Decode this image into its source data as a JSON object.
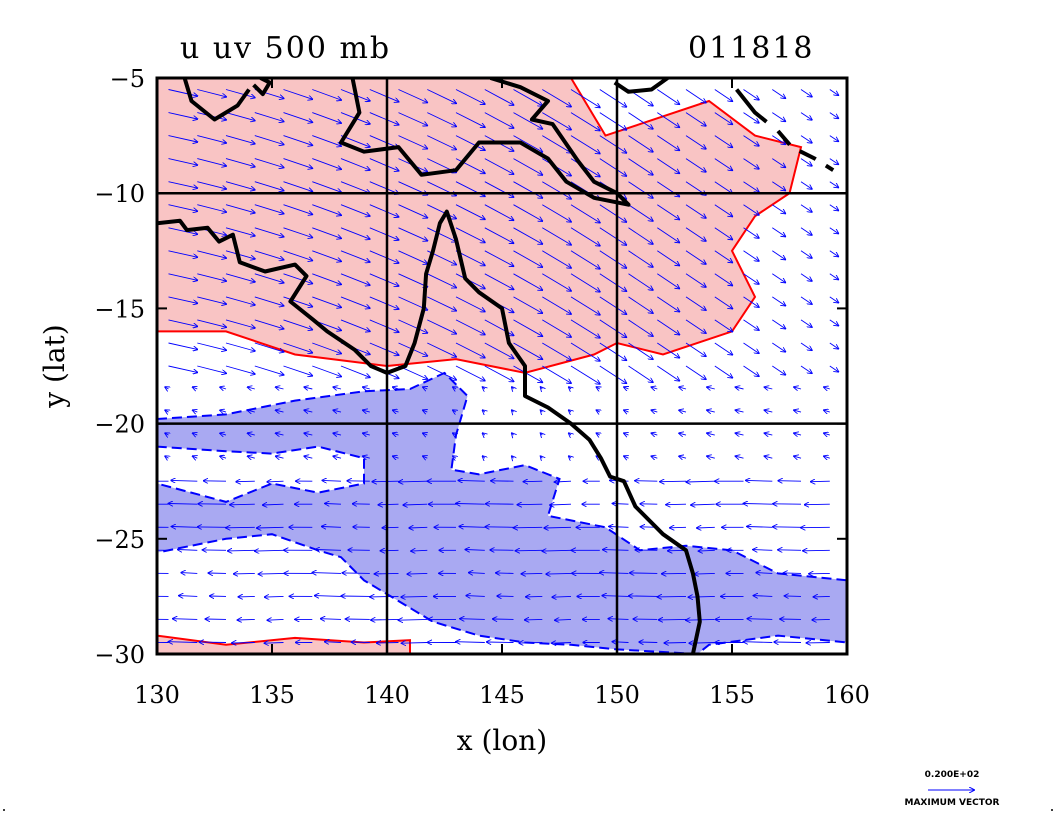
{
  "chart_data": {
    "type": "contour",
    "title": "u  uv 500 mb",
    "subtitle": "011818",
    "xlabel": "x (lon)",
    "ylabel": "y (lat)",
    "xlim": [
      130,
      160
    ],
    "ylim": [
      -30,
      -5
    ],
    "x_ticks": [
      130,
      135,
      140,
      145,
      150,
      155,
      160
    ],
    "x_tick_labels": [
      "130",
      "135",
      "140",
      "145",
      "150",
      "155",
      "160"
    ],
    "y_ticks": [
      -5,
      -10,
      -15,
      -20,
      -25,
      -30
    ],
    "y_tick_labels": [
      "−5",
      "−10",
      "−15",
      "−20",
      "−25",
      "−30"
    ],
    "gridlines": {
      "lon": [
        140,
        150
      ],
      "lat": [
        -10,
        -20
      ]
    },
    "shading": {
      "positive_color": "#f9c4c4",
      "negative_color": "#a9a9f2",
      "positive_contour_color": "#ff0000",
      "negative_contour_color": "#0000ff",
      "vector_color": "#0000ff",
      "coast_color": "#000000"
    },
    "regions": {
      "positive_north": [
        [
          130,
          -5
        ],
        [
          148,
          -5
        ],
        [
          149.5,
          -7.5
        ],
        [
          151,
          -7
        ],
        [
          154,
          -6
        ],
        [
          156,
          -7.5
        ],
        [
          158,
          -8
        ],
        [
          157.5,
          -10
        ],
        [
          156,
          -11
        ],
        [
          155,
          -12.5
        ],
        [
          156,
          -14.5
        ],
        [
          155,
          -16
        ],
        [
          152,
          -17
        ],
        [
          150,
          -16.5
        ],
        [
          149,
          -17
        ],
        [
          146,
          -17.8
        ],
        [
          143,
          -17.2
        ],
        [
          140,
          -17.5
        ],
        [
          136,
          -17
        ],
        [
          133,
          -16
        ],
        [
          130,
          -16
        ]
      ],
      "positive_south": [
        [
          130,
          -29.2
        ],
        [
          133,
          -29.6
        ],
        [
          136,
          -29.3
        ],
        [
          139,
          -29.5
        ],
        [
          141,
          -29.4
        ],
        [
          141,
          -30
        ],
        [
          130,
          -30
        ]
      ],
      "negative_main": [
        [
          130,
          -19.8
        ],
        [
          133,
          -19.6
        ],
        [
          136,
          -19
        ],
        [
          139,
          -18.6
        ],
        [
          141,
          -18.5
        ],
        [
          142.5,
          -17.8
        ],
        [
          143.5,
          -18.8
        ],
        [
          143,
          -20.5
        ],
        [
          142.8,
          -22
        ],
        [
          144,
          -22.2
        ],
        [
          146,
          -21.8
        ],
        [
          147.5,
          -22.4
        ],
        [
          147,
          -24
        ],
        [
          149.5,
          -24.5
        ],
        [
          151,
          -25.5
        ],
        [
          153,
          -25.3
        ],
        [
          155,
          -25.5
        ],
        [
          157,
          -26.5
        ],
        [
          160,
          -26.8
        ],
        [
          160,
          -29.5
        ],
        [
          157,
          -29.2
        ],
        [
          154,
          -29.6
        ],
        [
          153.5,
          -30
        ],
        [
          150,
          -29.8
        ],
        [
          148,
          -29.6
        ],
        [
          146,
          -29.5
        ],
        [
          144,
          -29.2
        ],
        [
          142,
          -28.6
        ],
        [
          139,
          -26.8
        ],
        [
          138,
          -25.8
        ],
        [
          137,
          -25.5
        ],
        [
          135,
          -24.8
        ],
        [
          133,
          -25
        ],
        [
          130,
          -25.6
        ],
        [
          130,
          -22.6
        ],
        [
          133,
          -23.4
        ],
        [
          135,
          -22.6
        ],
        [
          137,
          -23
        ],
        [
          139,
          -22.6
        ],
        [
          139,
          -21.5
        ],
        [
          137,
          -21
        ],
        [
          135,
          -21.3
        ],
        [
          133,
          -21.2
        ],
        [
          130,
          -21
        ]
      ]
    },
    "coastlines": [
      [
        [
          130,
          -11.3
        ],
        [
          131,
          -11.2
        ],
        [
          131.3,
          -11.6
        ],
        [
          132.2,
          -11.5
        ],
        [
          132.7,
          -12.1
        ],
        [
          133.3,
          -11.8
        ],
        [
          133.6,
          -13
        ],
        [
          134.7,
          -13.4
        ],
        [
          136,
          -13.1
        ],
        [
          136.5,
          -13.6
        ],
        [
          135.8,
          -14.7
        ],
        [
          136.8,
          -15.5
        ],
        [
          137.4,
          -16
        ],
        [
          138.6,
          -16.8
        ],
        [
          139.3,
          -17.5
        ],
        [
          140,
          -17.8
        ],
        [
          140.8,
          -17.5
        ],
        [
          141.2,
          -16.5
        ],
        [
          141.6,
          -15
        ],
        [
          141.7,
          -13.5
        ],
        [
          142,
          -12.5
        ],
        [
          142.3,
          -11.3
        ],
        [
          142.6,
          -10.8
        ],
        [
          143,
          -12
        ],
        [
          143.4,
          -13.7
        ],
        [
          144,
          -14.3
        ],
        [
          145,
          -15
        ],
        [
          145.3,
          -16.5
        ],
        [
          146,
          -17.5
        ],
        [
          146,
          -18.8
        ],
        [
          147,
          -19.3
        ],
        [
          148,
          -20
        ],
        [
          148.8,
          -20.7
        ],
        [
          149.3,
          -21.5
        ],
        [
          149.7,
          -22.3
        ],
        [
          150.3,
          -22.5
        ],
        [
          150.8,
          -23.6
        ],
        [
          152,
          -24.8
        ],
        [
          153,
          -25.5
        ],
        [
          153.3,
          -26.5
        ],
        [
          153.5,
          -27.5
        ],
        [
          153.6,
          -28.6
        ],
        [
          153.3,
          -30
        ]
      ],
      [
        [
          138.5,
          -5
        ],
        [
          138.8,
          -6.5
        ],
        [
          138,
          -7.8
        ],
        [
          139,
          -8.2
        ],
        [
          140.5,
          -8
        ],
        [
          141.5,
          -9.2
        ],
        [
          143,
          -9
        ],
        [
          144,
          -7.8
        ],
        [
          145.8,
          -7.8
        ],
        [
          147,
          -8.5
        ],
        [
          147.8,
          -9.5
        ],
        [
          149,
          -10.2
        ],
        [
          150.5,
          -10.5
        ],
        [
          150,
          -10
        ],
        [
          149,
          -9.5
        ],
        [
          148.3,
          -8.6
        ],
        [
          147.2,
          -7
        ],
        [
          146.3,
          -6.8
        ],
        [
          147,
          -6
        ],
        [
          145.8,
          -5.4
        ],
        [
          144.5,
          -5
        ]
      ],
      [
        [
          131.2,
          -5
        ],
        [
          131.5,
          -6
        ],
        [
          132.5,
          -6.8
        ],
        [
          133.5,
          -6.2
        ],
        [
          134,
          -5.5
        ]
      ],
      [
        [
          134.2,
          -5.3
        ],
        [
          134.6,
          -5.7
        ],
        [
          134.9,
          -5.2
        ],
        [
          134.5,
          -5.0
        ]
      ],
      [
        [
          149.9,
          -5.2
        ],
        [
          150.5,
          -5.6
        ],
        [
          151.5,
          -5.5
        ],
        [
          152.2,
          -5.0
        ]
      ],
      [
        [
          155.2,
          -5.5
        ],
        [
          156,
          -6.5
        ],
        [
          156.5,
          -6.9
        ]
      ]
    ],
    "dashed_contours_black": [
      [
        [
          157,
          -7.3
        ],
        [
          157.6,
          -8
        ],
        [
          158.6,
          -8.5
        ],
        [
          159.4,
          -9
        ]
      ]
    ],
    "wind_field": {
      "description": "u,v wind vectors at 500 mb, blue arrows",
      "reference_vector_label": "0.200E+02",
      "reference_vector_caption": "MAXIMUM VECTOR"
    }
  },
  "footer": {
    "vector_value": "0.200E+02",
    "vector_caption": "MAXIMUM VECTOR"
  }
}
